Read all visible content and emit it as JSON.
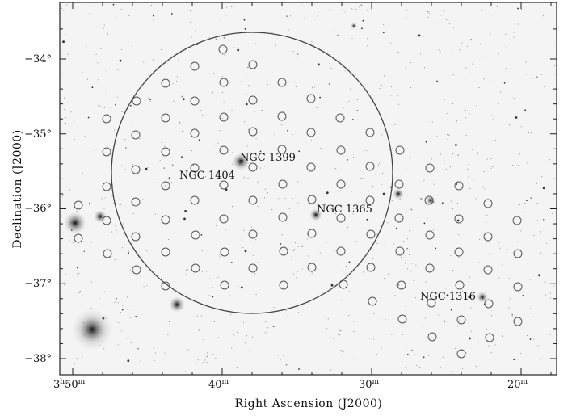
{
  "figure": {
    "axes": {
      "xlabel": "Right Ascension (J2000)",
      "ylabel": "Declination (J2000)"
    },
    "x_ticks": [
      {
        "hour": "3",
        "min": "50",
        "ra_minutes": 50
      },
      {
        "hour": "",
        "min": "40",
        "ra_minutes": 40
      },
      {
        "hour": "",
        "min": "30",
        "ra_minutes": 30
      },
      {
        "hour": "",
        "min": "20",
        "ra_minutes": 20
      }
    ],
    "y_ticks": [
      {
        "label": "−34°",
        "dec": -34
      },
      {
        "label": "−35°",
        "dec": -35
      },
      {
        "label": "−36°",
        "dec": -36
      },
      {
        "label": "−37°",
        "dec": -37
      },
      {
        "label": "−38°",
        "dec": -38
      }
    ],
    "galaxy_labels": [
      {
        "name": "NGC 1399"
      },
      {
        "name": "NGC 1404"
      },
      {
        "name": "NGC 1365"
      },
      {
        "name": "NGC 1316"
      }
    ],
    "styles": {
      "background": "#f4f4f4",
      "field_marker": "#555555",
      "large_circle": "#444444",
      "text": "#111111"
    }
  }
}
